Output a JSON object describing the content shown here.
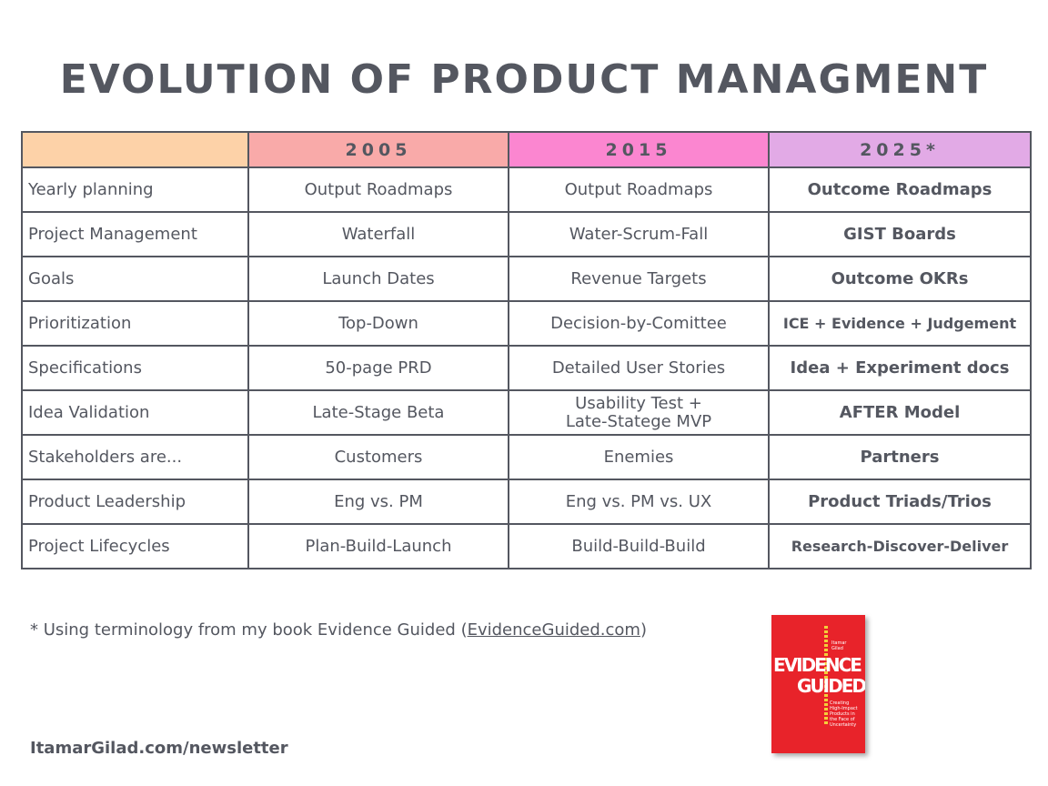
{
  "title": "EVOLUTION OF PRODUCT MANAGMENT",
  "table": {
    "headers": [
      "",
      "2005",
      "2015",
      "2025*"
    ],
    "rows": [
      {
        "label": "Yearly planning",
        "y2005": "Output Roadmaps",
        "y2015": "Output Roadmaps",
        "y2025": "Outcome Roadmaps"
      },
      {
        "label": "Project Management",
        "y2005": "Waterfall",
        "y2015": "Water-Scrum-Fall",
        "y2025": "GIST Boards"
      },
      {
        "label": "Goals",
        "y2005": "Launch Dates",
        "y2015": "Revenue Targets",
        "y2025": "Outcome OKRs"
      },
      {
        "label": "Prioritization",
        "y2005": "Top-Down",
        "y2015": "Decision-by-Comittee",
        "y2025": "ICE + Evidence + Judgement"
      },
      {
        "label": "Specifications",
        "y2005": "50-page PRD",
        "y2015": "Detailed User Stories",
        "y2025": "Idea + Experiment docs"
      },
      {
        "label": "Idea Validation",
        "y2005": "Late-Stage Beta",
        "y2015_line1": "Usability Test +",
        "y2015_line2": "Late-Statege MVP",
        "y2025": "AFTER Model"
      },
      {
        "label": "Stakeholders are...",
        "y2005": "Customers",
        "y2015": "Enemies",
        "y2025": "Partners"
      },
      {
        "label": "Product Leadership",
        "y2005": "Eng vs. PM",
        "y2015": "Eng vs. PM vs. UX",
        "y2025": "Product Triads/Trios"
      },
      {
        "label": "Project Lifecycles",
        "y2005": "Plan-Build-Launch",
        "y2015": "Build-Build-Build",
        "y2025": "Research-Discover-Deliver"
      }
    ]
  },
  "footnote": {
    "text": "* Using terminology from my book Evidence Guided (",
    "link": "EvidenceGuided.com",
    "close": ")"
  },
  "newsletter": "ItamarGilad.com/newsletter",
  "book": {
    "author_line1": "Itamar",
    "author_line2": "Gilad",
    "title_line1": "EVIDENCE",
    "title_line2": "GUIDED",
    "subtitle": "Creating High-Impact Products in the Face of Uncertainty",
    "colors": {
      "cover": "#e8232a",
      "accent": "#f3d03a"
    }
  },
  "colors": {
    "text": "#545760",
    "header_blank": "#fdd2a8",
    "header_2005": "#f9aaa9",
    "header_2015": "#fb86d0",
    "header_2025": "#e2aae6"
  }
}
